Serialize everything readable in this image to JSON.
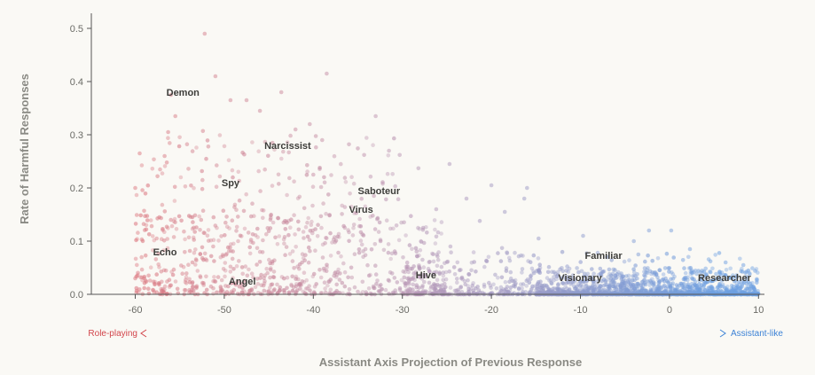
{
  "chart_data": {
    "type": "scatter",
    "title": "",
    "xlabel": "Assistant Axis Projection of Previous Response",
    "ylabel": "Rate of Harmful Responses",
    "xlim": [
      -65,
      13
    ],
    "ylim": [
      0,
      0.52
    ],
    "xticks": [
      -60,
      -50,
      -40,
      -30,
      -20,
      -10,
      0,
      10
    ],
    "yticks": [
      0.0,
      0.1,
      0.2,
      0.3,
      0.4,
      0.5
    ],
    "xtick_labels": [
      "-60",
      "-50",
      "-40",
      "-30",
      "-20",
      "-10",
      "0",
      "10"
    ],
    "ytick_labels": [
      "0.0",
      "0.1",
      "0.2",
      "0.3",
      "0.4",
      "0.5"
    ],
    "grid": false,
    "colors": {
      "role_playing": "#d2454b",
      "assistant_like": "#3c82d6",
      "mid": "#b08fb0"
    },
    "direction_labels": {
      "left": "Role-playing",
      "right": "Assistant-like"
    },
    "annotations": [
      {
        "label": "Demon",
        "x": -56.5,
        "y": 0.38
      },
      {
        "label": "Narcissist",
        "x": -45.5,
        "y": 0.28
      },
      {
        "label": "Spy",
        "x": -50.3,
        "y": 0.21
      },
      {
        "label": "Saboteur",
        "x": -35,
        "y": 0.195
      },
      {
        "label": "Virus",
        "x": -36,
        "y": 0.16
      },
      {
        "label": "Echo",
        "x": -58,
        "y": 0.08
      },
      {
        "label": "Angel",
        "x": -49.5,
        "y": 0.025
      },
      {
        "label": "Hive",
        "x": -28.5,
        "y": 0.037
      },
      {
        "label": "Familiar",
        "x": -9.5,
        "y": 0.073
      },
      {
        "label": "Visionary",
        "x": -12.5,
        "y": 0.032
      },
      {
        "label": "Researcher",
        "x": 3.2,
        "y": 0.032
      }
    ],
    "highlighted_points": [
      {
        "x": -52.2,
        "y": 0.49
      },
      {
        "x": -38.5,
        "y": 0.415
      },
      {
        "x": -51,
        "y": 0.41
      },
      {
        "x": -43.6,
        "y": 0.38
      },
      {
        "x": -56,
        "y": 0.375
      },
      {
        "x": -47.5,
        "y": 0.365
      },
      {
        "x": -49.3,
        "y": 0.365
      },
      {
        "x": -46,
        "y": 0.345
      },
      {
        "x": -55.5,
        "y": 0.335
      },
      {
        "x": -33,
        "y": 0.335
      },
      {
        "x": -40.4,
        "y": 0.32
      },
      {
        "x": -42,
        "y": 0.31
      },
      {
        "x": -56.3,
        "y": 0.305
      },
      {
        "x": -52.4,
        "y": 0.307
      },
      {
        "x": -39,
        "y": 0.29
      },
      {
        "x": -36,
        "y": 0.282
      },
      {
        "x": -31.5,
        "y": 0.27
      },
      {
        "x": -30.3,
        "y": 0.262
      },
      {
        "x": -59.5,
        "y": 0.265
      },
      {
        "x": -56.7,
        "y": 0.26
      },
      {
        "x": -24.7,
        "y": 0.245
      },
      {
        "x": -28.2,
        "y": 0.237
      },
      {
        "x": -57.5,
        "y": 0.222
      },
      {
        "x": -40,
        "y": 0.225
      },
      {
        "x": -16,
        "y": 0.2
      },
      {
        "x": -20,
        "y": 0.205
      },
      {
        "x": -16.3,
        "y": 0.18
      },
      {
        "x": -60,
        "y": 0.2
      },
      {
        "x": -22.8,
        "y": 0.18
      },
      {
        "x": -33.2,
        "y": 0.185
      },
      {
        "x": -26.2,
        "y": 0.16
      },
      {
        "x": -18.5,
        "y": 0.155
      },
      {
        "x": -59,
        "y": 0.157
      },
      {
        "x": -56,
        "y": 0.14
      },
      {
        "x": -52.6,
        "y": 0.14
      },
      {
        "x": -21.3,
        "y": 0.138
      },
      {
        "x": -2.3,
        "y": 0.12
      },
      {
        "x": 0.2,
        "y": 0.12
      },
      {
        "x": -4,
        "y": 0.1
      },
      {
        "x": -14.7,
        "y": 0.105
      },
      {
        "x": -9.7,
        "y": 0.11
      },
      {
        "x": -24.6,
        "y": 0.09
      },
      {
        "x": -18.8,
        "y": 0.087
      },
      {
        "x": -7,
        "y": 0.07
      },
      {
        "x": -3.5,
        "y": 0.075
      },
      {
        "x": 2.3,
        "y": 0.085
      },
      {
        "x": 4.6,
        "y": 0.062
      },
      {
        "x": 6.3,
        "y": 0.06
      },
      {
        "x": 8.3,
        "y": 0.055
      },
      {
        "x": 9.8,
        "y": 0.022
      },
      {
        "x": -60,
        "y": 0.03
      },
      {
        "x": -57.8,
        "y": 0.02
      },
      {
        "x": -45,
        "y": 0.005
      },
      {
        "x": -35,
        "y": 0.005
      }
    ],
    "point_cloud": [
      {
        "x_range": [
          -60,
          -38
        ],
        "y_range": [
          0.0,
          0.15
        ],
        "count": 460,
        "y_bias": 2.0
      },
      {
        "x_range": [
          -60,
          -30
        ],
        "y_range": [
          0.1,
          0.3
        ],
        "count": 190,
        "y_bias": 1.4
      },
      {
        "x_range": [
          -38,
          -25
        ],
        "y_range": [
          0.0,
          0.15
        ],
        "count": 230,
        "y_bias": 2.2
      },
      {
        "x_range": [
          -30,
          -15
        ],
        "y_range": [
          0.0,
          0.08
        ],
        "count": 300,
        "y_bias": 3.2
      },
      {
        "x_range": [
          -15,
          10
        ],
        "y_range": [
          0.0,
          0.05
        ],
        "count": 1500,
        "y_bias": 4.5
      },
      {
        "x_range": [
          -15,
          8
        ],
        "y_range": [
          0.0,
          0.08
        ],
        "count": 160,
        "y_bias": 2.5
      }
    ]
  }
}
